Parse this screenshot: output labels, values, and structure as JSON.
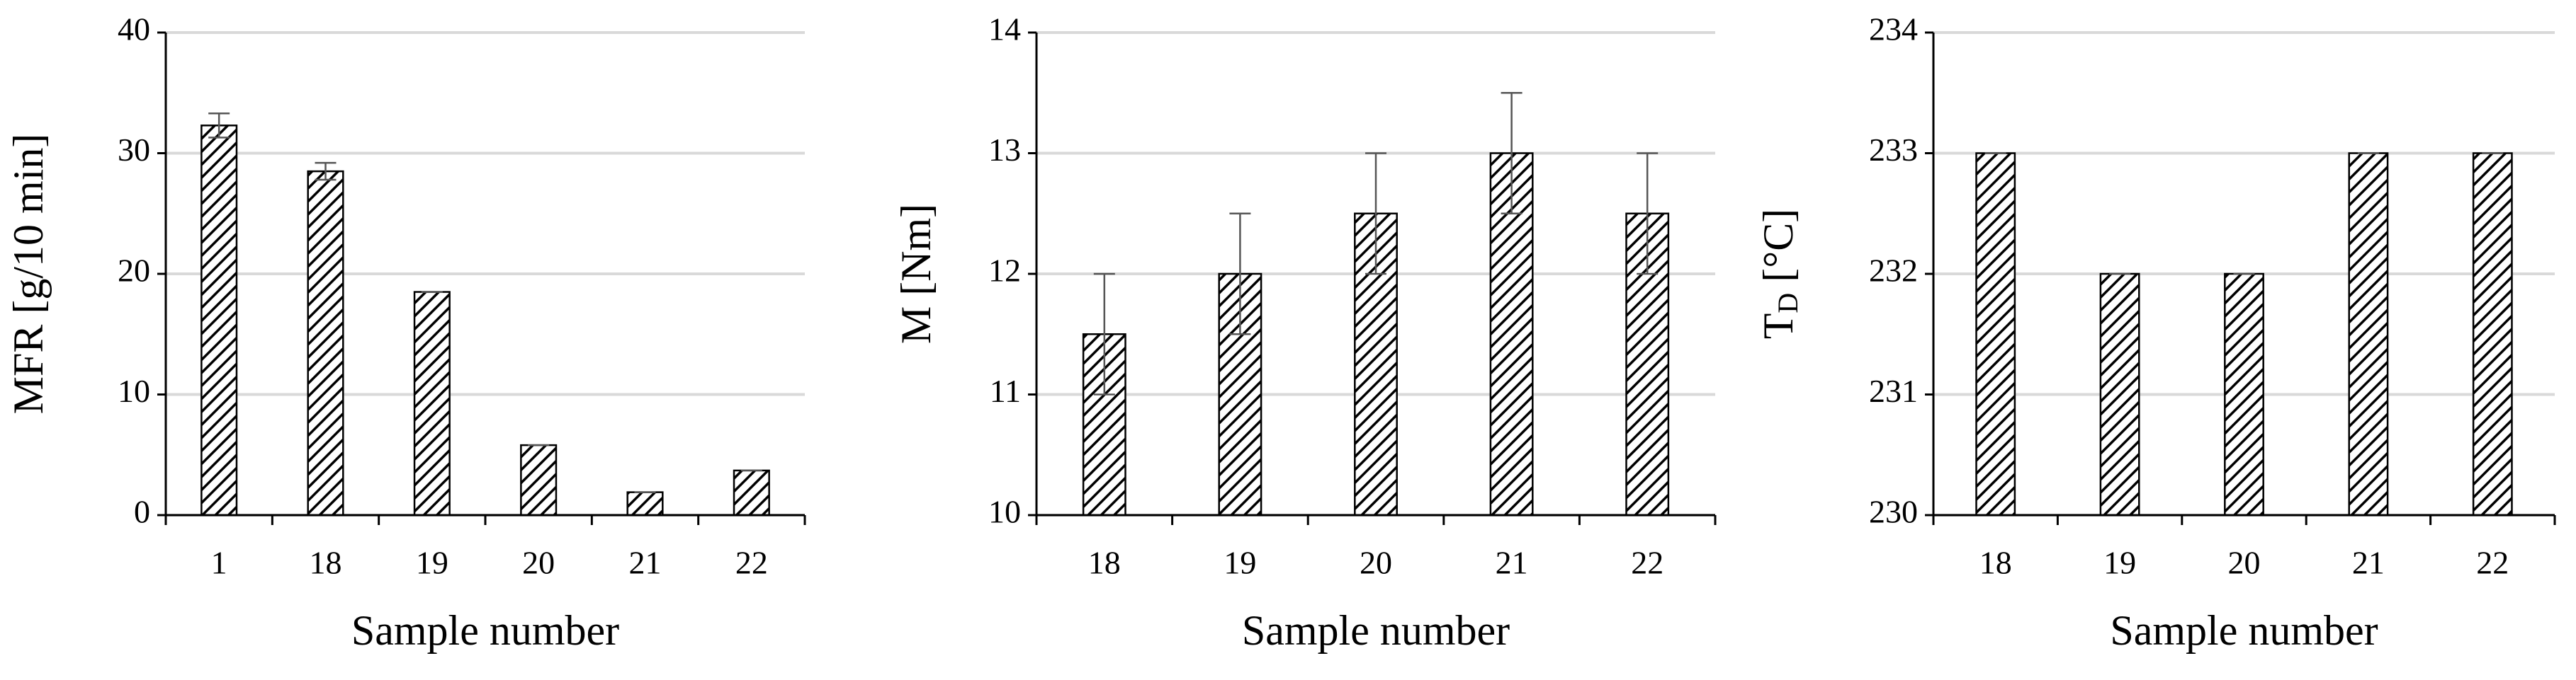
{
  "chart_data": [
    {
      "type": "bar",
      "categories": [
        "1",
        "18",
        "19",
        "20",
        "21",
        "22"
      ],
      "values": [
        32.3,
        28.5,
        18.5,
        5.8,
        1.9,
        3.7
      ],
      "errors": [
        1.0,
        0.7,
        0,
        0,
        0,
        0
      ],
      "color": "#000000",
      "ylim": [
        0,
        40
      ],
      "yticks": [
        0,
        10,
        20,
        30,
        40
      ],
      "grid": true,
      "ylabel": "MFR [g/10 min]",
      "xlabel": "Sample number"
    },
    {
      "type": "bar",
      "categories": [
        "18",
        "19",
        "20",
        "21",
        "22"
      ],
      "values": [
        11.5,
        12,
        12.5,
        13,
        12.5
      ],
      "errors": [
        0.5,
        0.5,
        0.5,
        0.5,
        0.5
      ],
      "color": "#000000",
      "ylim": [
        10,
        14
      ],
      "yticks": [
        10,
        11,
        12,
        13,
        14
      ],
      "grid": true,
      "ylabel": "M [Nm]",
      "xlabel": "Sample number"
    },
    {
      "type": "bar",
      "categories": [
        "18",
        "19",
        "20",
        "21",
        "22"
      ],
      "values": [
        233,
        232,
        232,
        233,
        233
      ],
      "errors": [
        0,
        0,
        0,
        0,
        0
      ],
      "color": "#000000",
      "ylim": [
        230,
        234
      ],
      "yticks": [
        230,
        231,
        232,
        233,
        234
      ],
      "grid": true,
      "ylabel": {
        "base": "T",
        "sub": "D",
        "rest": " [°C]"
      },
      "xlabel": "Sample number"
    }
  ]
}
